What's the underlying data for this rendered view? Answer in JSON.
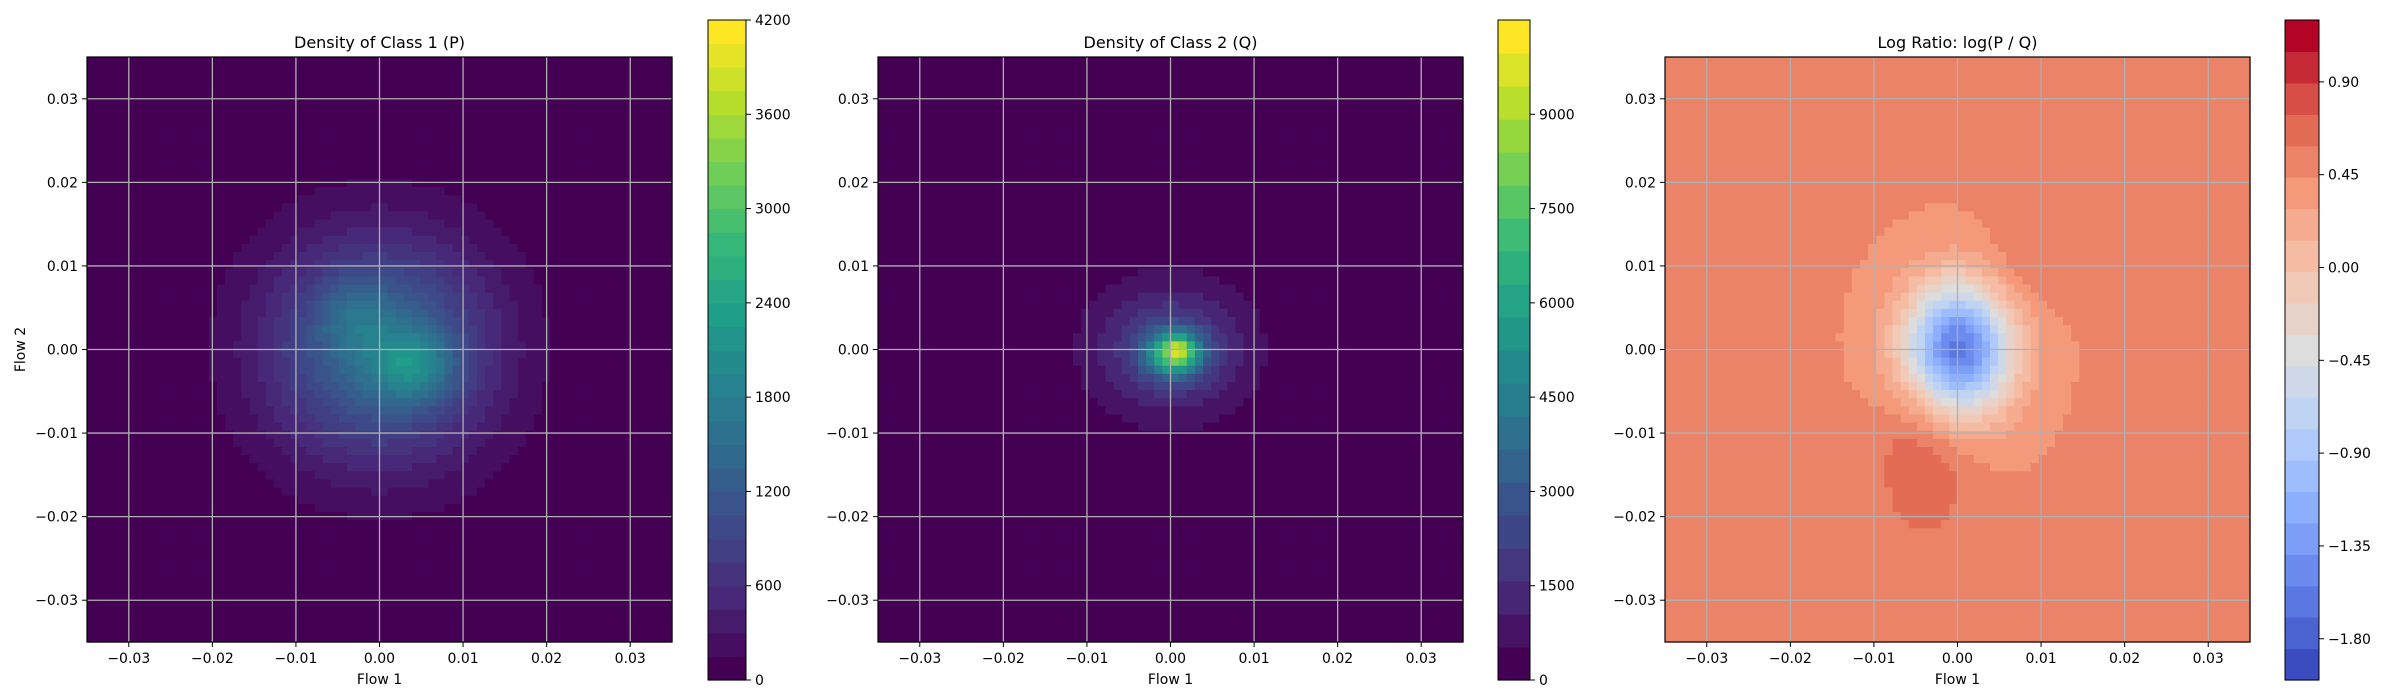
{
  "chart_data": [
    {
      "type": "heatmap",
      "title": "Density of Class 1 (P)",
      "xlabel": "Flow 1",
      "ylabel": "Flow 2",
      "xlim": [
        -0.035,
        0.035
      ],
      "ylim": [
        -0.035,
        0.035
      ],
      "xticks": [
        "−0.03",
        "−0.02",
        "−0.01",
        "0.00",
        "0.01",
        "0.02",
        "0.03"
      ],
      "yticks": [
        "−0.03",
        "−0.02",
        "−0.01",
        "0.00",
        "0.01",
        "0.02",
        "0.03"
      ],
      "grid": true,
      "colormap": "viridis",
      "colorbar": {
        "min": 0,
        "max": 4200,
        "ticks": [
          "0",
          "600",
          "1200",
          "1800",
          "2400",
          "3000",
          "3600",
          "4200"
        ],
        "levels": 28
      },
      "density": {
        "blobs": [
          {
            "cx": 0.0,
            "cy": 0.0,
            "sx": 0.0095,
            "sy": 0.0095,
            "amp": 1500
          },
          {
            "cx": 0.004,
            "cy": -0.002,
            "sx": 0.0035,
            "sy": 0.003,
            "amp": 900
          },
          {
            "cx": -0.003,
            "cy": 0.004,
            "sx": 0.003,
            "sy": 0.003,
            "amp": 400
          }
        ]
      }
    },
    {
      "type": "heatmap",
      "title": "Density of Class 2 (Q)",
      "xlabel": "Flow 1",
      "ylabel": "",
      "xlim": [
        -0.035,
        0.035
      ],
      "ylim": [
        -0.035,
        0.035
      ],
      "xticks": [
        "−0.03",
        "−0.02",
        "−0.01",
        "0.00",
        "0.01",
        "0.02",
        "0.03"
      ],
      "yticks": [
        "−0.03",
        "−0.02",
        "−0.01",
        "0.00",
        "0.01",
        "0.02",
        "0.03"
      ],
      "grid": true,
      "colormap": "viridis",
      "colorbar": {
        "min": 0,
        "max": 10500,
        "ticks": [
          "0",
          "1500",
          "3000",
          "4500",
          "6000",
          "7500",
          "9000"
        ],
        "levels": 20
      },
      "density": {
        "blobs": [
          {
            "cx": 0.0,
            "cy": 0.0,
            "sx": 0.0065,
            "sy": 0.0055,
            "amp": 2500
          },
          {
            "cx": 0.0005,
            "cy": -0.0005,
            "sx": 0.0022,
            "sy": 0.0018,
            "amp": 6000
          },
          {
            "cx": 0.001,
            "cy": 0.0,
            "sx": 0.0009,
            "sy": 0.0009,
            "amp": 2000
          }
        ]
      }
    },
    {
      "type": "heatmap",
      "title": "Log Ratio: log(P / Q)",
      "xlabel": "Flow 1",
      "ylabel": "",
      "xlim": [
        -0.035,
        0.035
      ],
      "ylim": [
        -0.035,
        0.035
      ],
      "xticks": [
        "−0.03",
        "−0.02",
        "−0.01",
        "0.00",
        "0.01",
        "0.02",
        "0.03"
      ],
      "yticks": [
        "−0.03",
        "−0.02",
        "−0.01",
        "0.00",
        "0.01",
        "0.02",
        "0.03"
      ],
      "grid": true,
      "colormap": "coolwarm",
      "colorbar": {
        "min": -2.0,
        "max": 1.2,
        "ticks": [
          "−1.80",
          "−1.35",
          "−0.90",
          "−0.45",
          "0.00",
          "0.45",
          "0.90"
        ],
        "levels": 21
      },
      "density": {
        "base": 0.45,
        "blobs": [
          {
            "cx": 0.0,
            "cy": 0.0,
            "sx": 0.0045,
            "sy": 0.0055,
            "amp": -2.1
          },
          {
            "cx": -0.004,
            "cy": -0.012,
            "sx": 0.004,
            "sy": 0.008,
            "amp": 0.3
          },
          {
            "cx": 0.008,
            "cy": 0.01,
            "sx": 0.004,
            "sy": 0.004,
            "amp": 0.15
          }
        ]
      }
    }
  ]
}
